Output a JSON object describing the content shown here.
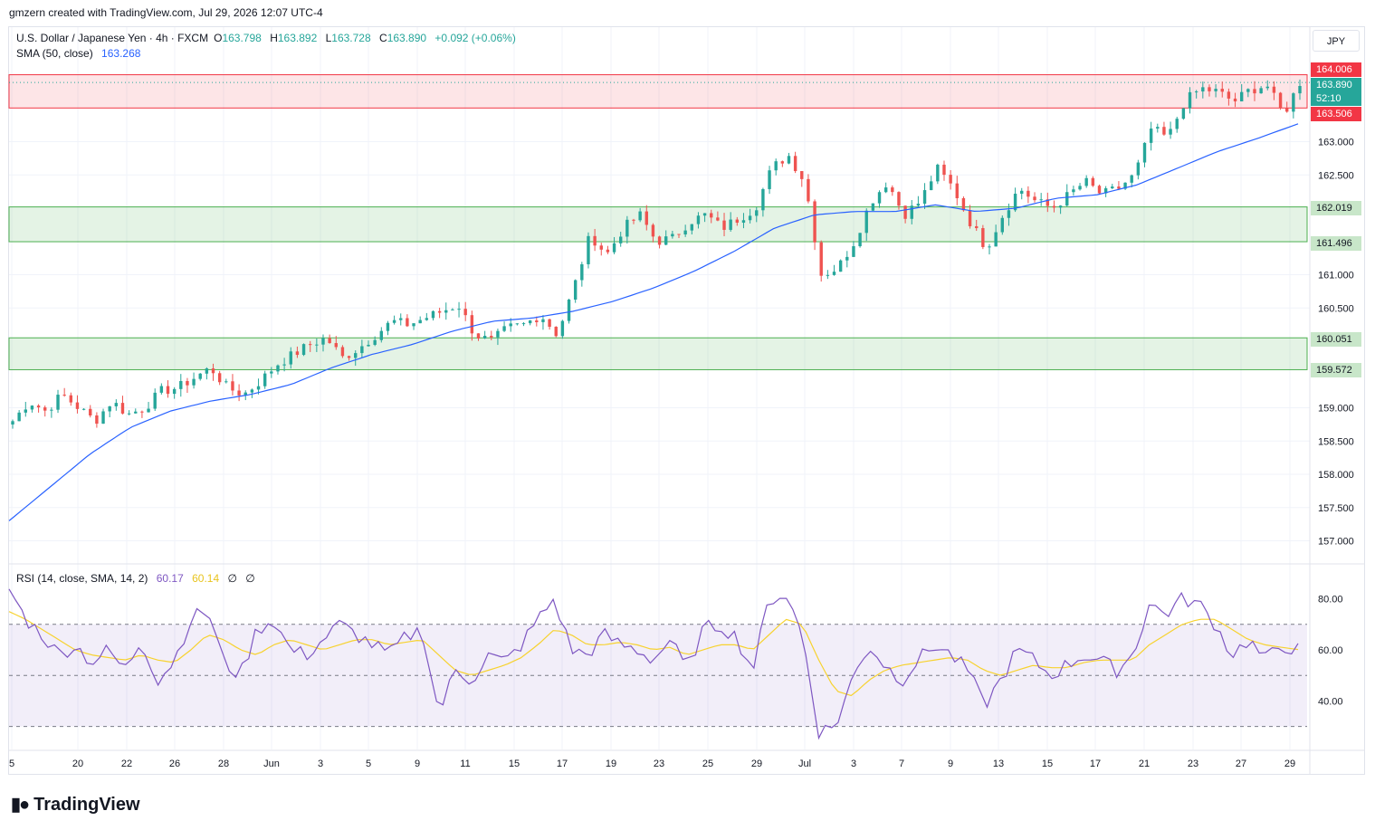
{
  "header": {
    "credit": "gmzern created with TradingView.com, Jul 29, 2026 12:07 UTC-4"
  },
  "symbol": {
    "name": "U.S. Dollar / Japanese Yen · 4h · FXCM",
    "o_label": "O",
    "o": "163.798",
    "h_label": "H",
    "h": "163.892",
    "l_label": "L",
    "l": "163.728",
    "c_label": "C",
    "c": "163.890",
    "change": "+0.092 (+0.06%)"
  },
  "sma": {
    "label": "SMA (50, close)",
    "value": "163.268",
    "color": "#2962ff"
  },
  "rsi": {
    "label": "RSI (14, close, SMA, 14, 2)",
    "value": "60.17",
    "ma_value": "60.14",
    "extra1": "∅",
    "extra2": "∅",
    "color": "#7e57c2",
    "ma_color": "#f7d22e"
  },
  "currency_button": "JPY",
  "price_tags": {
    "zone_top_upper": "164.006",
    "last_price": "163.890",
    "countdown": "52:10",
    "zone_top_lower": "163.506",
    "zone_mid_upper": "162.019",
    "zone_mid_lower": "161.496",
    "zone_low_upper": "160.051",
    "zone_low_lower": "159.572"
  },
  "colors": {
    "up": "#26a69a",
    "down": "#ef5350",
    "resist_zone": "#f23645",
    "support_zone": "#4caf50",
    "last_price_bg": "#26a69a"
  },
  "footer": {
    "brand": "TradingView"
  },
  "chart_data": [
    {
      "type": "candlestick",
      "title": "U.S. Dollar / Japanese Yen · 4h · FXCM",
      "y_ticks": [
        "163.000",
        "162.500",
        "161.000",
        "160.500",
        "159.000",
        "158.500",
        "158.000",
        "157.500",
        "157.000"
      ],
      "y_tick_values": [
        163.0,
        162.5,
        161.0,
        160.5,
        159.0,
        158.5,
        158.0,
        157.5,
        157.0
      ],
      "x_ticks": [
        "5",
        "20",
        "22",
        "26",
        "28",
        "Jun",
        "3",
        "5",
        "9",
        "11",
        "15",
        "17",
        "19",
        "23",
        "25",
        "29",
        "Jul",
        "3",
        "7",
        "9",
        "13",
        "15",
        "17",
        "21",
        "23",
        "27",
        "29"
      ],
      "ylim": [
        156.6,
        164.6
      ],
      "zones": [
        {
          "name": "resistance",
          "top": 164.006,
          "bottom": 163.506
        },
        {
          "name": "support-mid",
          "top": 162.019,
          "bottom": 161.496
        },
        {
          "name": "support-low",
          "top": 160.051,
          "bottom": 159.572
        }
      ],
      "close_anchors": [
        158.8,
        159.1,
        158.95,
        159.2,
        159.0,
        158.8,
        159.1,
        158.9,
        159.0,
        159.25,
        159.3,
        159.45,
        159.6,
        159.3,
        159.2,
        159.4,
        159.65,
        159.8,
        159.95,
        160.05,
        159.75,
        159.9,
        160.1,
        160.3,
        160.25,
        160.35,
        160.45,
        160.55,
        160.1,
        160.0,
        160.2,
        160.25,
        160.4,
        160.1,
        160.8,
        161.6,
        161.3,
        161.7,
        161.9,
        161.5,
        161.55,
        161.8,
        161.9,
        161.7,
        161.85,
        162.0,
        162.6,
        162.8,
        162.4,
        161.0,
        161.1,
        161.5,
        162.1,
        162.4,
        161.9,
        162.1,
        162.6,
        162.3,
        161.8,
        161.4,
        161.9,
        162.3,
        162.1,
        162.0,
        162.2,
        162.4,
        162.2,
        162.3,
        162.5,
        163.2,
        163.05,
        163.6,
        163.8,
        163.75,
        163.6,
        163.78,
        163.85,
        163.4,
        163.89
      ],
      "sma_anchors": [
        157.3,
        157.8,
        158.3,
        158.7,
        158.95,
        159.1,
        159.2,
        159.35,
        159.6,
        159.8,
        159.95,
        160.15,
        160.3,
        160.35,
        160.45,
        160.6,
        160.8,
        161.05,
        161.35,
        161.7,
        161.9,
        161.95,
        161.95,
        162.05,
        161.95,
        162.0,
        162.15,
        162.2,
        162.35,
        162.6,
        162.85,
        163.05,
        163.268
      ],
      "series": [
        {
          "name": "SMA (50, close)",
          "current": 163.268
        }
      ]
    },
    {
      "type": "line",
      "title": "RSI (14, close, SMA, 14, 2)",
      "y_ticks": [
        "80.00",
        "60.00",
        "40.00"
      ],
      "y_tick_values": [
        80,
        60,
        40
      ],
      "ylim": [
        20,
        92
      ],
      "bands": {
        "upper": 70,
        "middle": 50,
        "lower": 30
      },
      "rsi_anchors": [
        84,
        72,
        66,
        58,
        62,
        55,
        60,
        52,
        64,
        48,
        56,
        72,
        76,
        55,
        50,
        68,
        72,
        60,
        58,
        64,
        70,
        66,
        62,
        58,
        65,
        68,
        35,
        52,
        48,
        58,
        55,
        62,
        72,
        80,
        60,
        58,
        66,
        62,
        60,
        56,
        64,
        52,
        68,
        70,
        65,
        52,
        80,
        82,
        66,
        28,
        30,
        48,
        62,
        54,
        48,
        56,
        62,
        58,
        52,
        38,
        48,
        60,
        56,
        50,
        54,
        58,
        56,
        52,
        58,
        78,
        74,
        80,
        78,
        70,
        58,
        64,
        56,
        62,
        60
      ],
      "ma_anchors": [
        75,
        72,
        68,
        64,
        60,
        58,
        57,
        56,
        58,
        56,
        55,
        60,
        66,
        64,
        60,
        58,
        62,
        64,
        62,
        60,
        62,
        64,
        64,
        62,
        63,
        64,
        58,
        52,
        50,
        52,
        54,
        57,
        62,
        68,
        66,
        62,
        62,
        63,
        62,
        60,
        61,
        58,
        60,
        62,
        62,
        60,
        66,
        72,
        70,
        56,
        44,
        42,
        48,
        52,
        54,
        55,
        56,
        57,
        56,
        52,
        50,
        52,
        54,
        53,
        53,
        55,
        56,
        56,
        56,
        62,
        66,
        70,
        72,
        72,
        68,
        64,
        62,
        61,
        60.14
      ],
      "series": [
        {
          "name": "RSI",
          "current": 60.17
        },
        {
          "name": "RSI SMA",
          "current": 60.14
        }
      ]
    }
  ]
}
